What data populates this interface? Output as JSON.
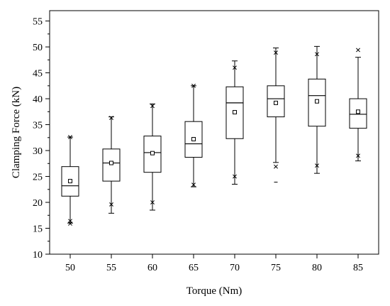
{
  "chart_data": {
    "type": "boxplot",
    "xlabel": "Torque (Nm)",
    "ylabel": "Clamping Force (kN)",
    "ylim": [
      10,
      57
    ],
    "yticks": [
      10,
      15,
      20,
      25,
      30,
      35,
      40,
      45,
      50,
      55
    ],
    "categories": [
      "50",
      "55",
      "60",
      "65",
      "70",
      "75",
      "80",
      "85"
    ],
    "grid": false,
    "boxes": [
      {
        "x": "50",
        "whisker_low": 16.0,
        "q1": 21.2,
        "median": 23.2,
        "q3": 26.9,
        "whisker_high": 32.6,
        "mean": 24.1,
        "outliers_x": [
          15.9,
          16.4,
          32.6
        ],
        "outliers_dash": []
      },
      {
        "x": "55",
        "whisker_low": 17.9,
        "q1": 24.1,
        "median": 27.6,
        "q3": 30.3,
        "whisker_high": 36.5,
        "mean": 27.6,
        "outliers_x": [
          19.6,
          36.3
        ],
        "outliers_dash": []
      },
      {
        "x": "60",
        "whisker_low": 18.5,
        "q1": 25.8,
        "median": 29.6,
        "q3": 32.8,
        "whisker_high": 39.0,
        "mean": 29.5,
        "outliers_x": [
          20.0,
          38.6
        ],
        "outliers_dash": []
      },
      {
        "x": "65",
        "whisker_low": 23.0,
        "q1": 28.7,
        "median": 31.3,
        "q3": 35.6,
        "whisker_high": 42.5,
        "mean": 32.2,
        "outliers_x": [
          23.4,
          42.5
        ],
        "outliers_dash": []
      },
      {
        "x": "70",
        "whisker_low": 23.5,
        "q1": 32.3,
        "median": 39.2,
        "q3": 42.3,
        "whisker_high": 47.3,
        "mean": 37.4,
        "outliers_x": [
          25.0,
          46.0
        ],
        "outliers_dash": []
      },
      {
        "x": "75",
        "whisker_low": 27.7,
        "q1": 36.5,
        "median": 40.0,
        "q3": 42.5,
        "whisker_high": 49.8,
        "mean": 39.2,
        "outliers_x": [
          26.9,
          48.9
        ],
        "outliers_dash": [
          23.9
        ]
      },
      {
        "x": "80",
        "whisker_low": 25.6,
        "q1": 34.7,
        "median": 40.6,
        "q3": 43.8,
        "whisker_high": 50.1,
        "mean": 39.5,
        "outliers_x": [
          27.1,
          48.6
        ],
        "outliers_dash": []
      },
      {
        "x": "85",
        "whisker_low": 28.0,
        "q1": 34.3,
        "median": 37.0,
        "q3": 40.0,
        "whisker_high": 48.0,
        "mean": 37.5,
        "outliers_x": [
          29.0,
          49.4
        ],
        "outliers_dash": []
      }
    ]
  }
}
